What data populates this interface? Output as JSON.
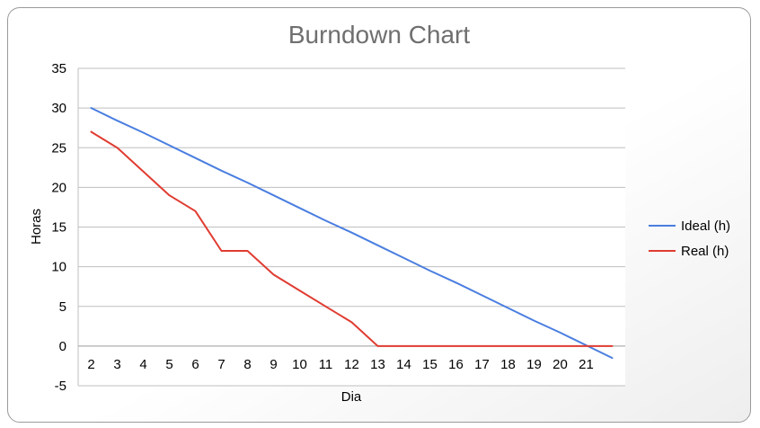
{
  "chart_data": {
    "type": "line",
    "title": "Burndown Chart",
    "xlabel": "Dia",
    "ylabel": "Horas",
    "ylim": [
      -5,
      35
    ],
    "y_ticks": [
      -5,
      0,
      5,
      10,
      15,
      20,
      25,
      30,
      35
    ],
    "categories": [
      "2",
      "3",
      "4",
      "5",
      "6",
      "7",
      "8",
      "9",
      "10",
      "11",
      "12",
      "13",
      "14",
      "15",
      "16",
      "17",
      "18",
      "19",
      "20",
      "21",
      ""
    ],
    "grid": true,
    "legend_position": "right",
    "series": [
      {
        "name": "Ideal (h)",
        "color": "#4a7ee0",
        "values": [
          30,
          28.4,
          26.9,
          25.3,
          23.7,
          22.1,
          20.6,
          19.0,
          17.4,
          15.8,
          14.3,
          12.7,
          11.1,
          9.5,
          8.0,
          6.4,
          4.8,
          3.2,
          1.7,
          0.1,
          -1.5
        ]
      },
      {
        "name": "Real (h)",
        "color": "#e03c31",
        "values": [
          27,
          25,
          22,
          19,
          17,
          12,
          12,
          9,
          7,
          5,
          3,
          0,
          0,
          0,
          0,
          0,
          0,
          0,
          0,
          0,
          0
        ]
      }
    ]
  }
}
